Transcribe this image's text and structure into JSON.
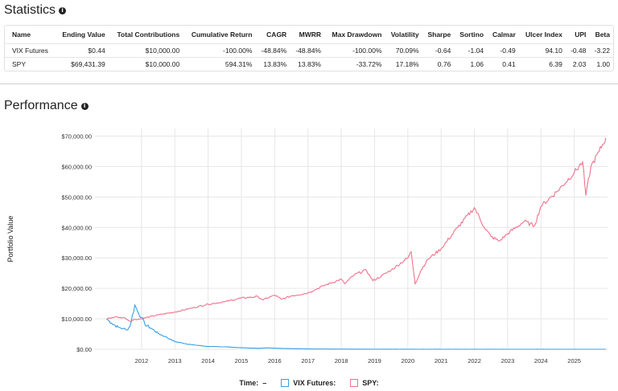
{
  "statistics": {
    "title": "Statistics",
    "info_icon": "i",
    "columns": [
      "Name",
      "Ending Value",
      "Total Contributions",
      "Cumulative Return",
      "CAGR",
      "MWRR",
      "Max Drawdown",
      "Volatility",
      "Sharpe",
      "Sortino",
      "Calmar",
      "Ulcer Index",
      "UPI",
      "Beta"
    ],
    "rows": [
      [
        "VIX Futures",
        "$0.44",
        "$10,000.00",
        "-100.00%",
        "-48.84%",
        "-48.84%",
        "-100.00%",
        "70.09%",
        "-0.64",
        "-1.04",
        "-0.49",
        "94.10",
        "-0.48",
        "-3.22"
      ],
      [
        "SPY",
        "$69,431.39",
        "$10,000.00",
        "594.31%",
        "13.83%",
        "13.83%",
        "-33.72%",
        "17.18%",
        "0.76",
        "1.06",
        "0.41",
        "6.39",
        "2.03",
        "1.00"
      ]
    ]
  },
  "performance": {
    "title": "Performance",
    "info_icon": "i"
  },
  "legend": {
    "time_label": "Time:",
    "time_value": "–",
    "vix_label": "VIX Futures:",
    "spy_label": "SPY:"
  },
  "colors": {
    "vix": "#3a9ee4",
    "spy": "#f2728c",
    "grid": "#e6e6e6"
  },
  "chart_data": {
    "type": "line",
    "ylabel": "Portfolio Value",
    "ylim": [
      0,
      70000
    ],
    "xlim": [
      2010.6,
      2026.0
    ],
    "yticks": [
      0,
      10000,
      20000,
      30000,
      40000,
      50000,
      60000,
      70000
    ],
    "ytick_labels": [
      "$0.00",
      "$10,000.00",
      "$20,000.00",
      "$30,000.00",
      "$40,000.00",
      "$50,000.00",
      "$60,000.00",
      "$70,000.00"
    ],
    "xticks": [
      2012,
      2013,
      2014,
      2015,
      2016,
      2017,
      2018,
      2019,
      2020,
      2021,
      2022,
      2023,
      2024,
      2025
    ],
    "xtick_labels": [
      "2012",
      "2013",
      "2014",
      "2015",
      "2016",
      "2017",
      "2018",
      "2019",
      "2020",
      "2021",
      "2022",
      "2023",
      "2024",
      "2025"
    ],
    "series": [
      {
        "name": "VIX Futures",
        "x": [
          2010.95,
          2011.1,
          2011.3,
          2011.45,
          2011.55,
          2011.65,
          2011.8,
          2011.9,
          2012.0,
          2012.1,
          2012.3,
          2012.5,
          2012.7,
          2013.0,
          2013.5,
          2014.0,
          2014.5,
          2015.0,
          2015.5,
          2015.75,
          2016.0,
          2016.5,
          2017.0,
          2018.0,
          2019.0,
          2020.0,
          2021.0,
          2022.0,
          2023.0,
          2024.0,
          2025.0,
          2025.95
        ],
        "y": [
          10000,
          8600,
          7200,
          6800,
          6300,
          7500,
          14500,
          12000,
          10500,
          8200,
          6800,
          5200,
          4200,
          2500,
          1500,
          900,
          800,
          500,
          300,
          450,
          350,
          200,
          100,
          40,
          25,
          15,
          8,
          5,
          3,
          2,
          1,
          0.44
        ]
      },
      {
        "name": "SPY",
        "x": [
          2010.95,
          2011.2,
          2011.5,
          2011.65,
          2011.8,
          2012.0,
          2012.5,
          2013.0,
          2013.5,
          2014.0,
          2014.5,
          2015.0,
          2015.5,
          2015.65,
          2016.0,
          2016.2,
          2016.5,
          2017.0,
          2017.5,
          2018.0,
          2018.1,
          2018.4,
          2018.75,
          2018.95,
          2019.2,
          2019.5,
          2020.0,
          2020.1,
          2020.22,
          2020.4,
          2020.6,
          2021.0,
          2021.5,
          2022.0,
          2022.3,
          2022.5,
          2022.75,
          2023.0,
          2023.5,
          2023.8,
          2024.0,
          2024.5,
          2025.0,
          2025.25,
          2025.35,
          2025.5,
          2025.75,
          2025.95
        ],
        "y": [
          10000,
          10600,
          10300,
          9200,
          9800,
          10000,
          11300,
          12200,
          13500,
          14800,
          15600,
          16800,
          17300,
          16200,
          17800,
          16400,
          17500,
          18500,
          21000,
          23000,
          21500,
          24500,
          26000,
          22500,
          24000,
          26000,
          30000,
          32000,
          21500,
          26000,
          29500,
          33000,
          40000,
          46500,
          40000,
          37000,
          35500,
          38000,
          42000,
          40500,
          47000,
          52000,
          58000,
          61500,
          50500,
          60000,
          65000,
          69400
        ]
      }
    ]
  }
}
